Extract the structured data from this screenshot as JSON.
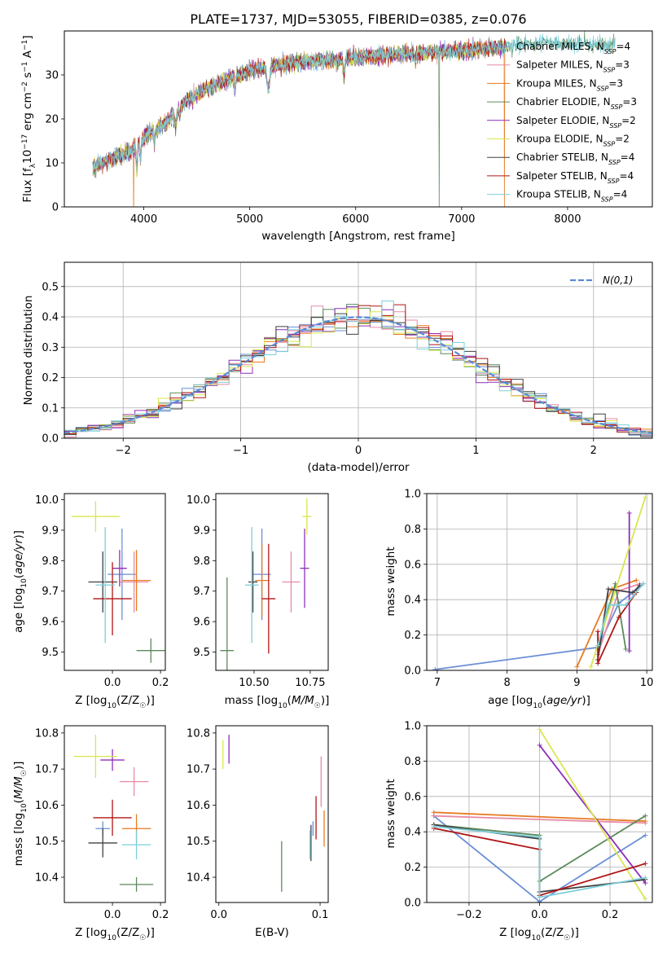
{
  "title": "PLATE=1737, MJD=53055, FIBERID=0385, z=0.076",
  "series": [
    {
      "name": "Chabrier MILES",
      "nssp": "4",
      "color": "#6b8fd6"
    },
    {
      "name": "Salpeter MILES",
      "nssp": "3",
      "color": "#e88aa4"
    },
    {
      "name": "Kroupa MILES",
      "nssp": "3",
      "color": "#e67a22"
    },
    {
      "name": "Chabrier ELODIE",
      "nssp": "3",
      "color": "#5c8a5c"
    },
    {
      "name": "Salpeter ELODIE",
      "nssp": "2",
      "color": "#8e2fb8"
    },
    {
      "name": "Kroupa ELODIE",
      "nssp": "2",
      "color": "#d9e64f"
    },
    {
      "name": "Chabrier STELIB",
      "nssp": "4",
      "color": "#404040"
    },
    {
      "name": "Salpeter STELIB",
      "nssp": "4",
      "color": "#b01515"
    },
    {
      "name": "Kroupa STELIB",
      "nssp": "4",
      "color": "#7ccfd9"
    }
  ],
  "chart_data": [
    {
      "id": "spectrum",
      "type": "line",
      "xlabel": "wavelength [Angstrom, rest frame]",
      "ylabel": "Flux [f_λ10^-17 erg cm^-2 s^-1 A^-1]",
      "xlim": [
        3250,
        8800
      ],
      "ylim": [
        0,
        40
      ],
      "xticks": [
        4000,
        5000,
        6000,
        7000,
        8000
      ],
      "yticks": [
        0,
        10,
        20,
        30
      ],
      "continuum": [
        [
          3520,
          9
        ],
        [
          3700,
          11
        ],
        [
          3900,
          13
        ],
        [
          4000,
          16
        ],
        [
          4200,
          19
        ],
        [
          4400,
          24
        ],
        [
          4600,
          27
        ],
        [
          4800,
          29
        ],
        [
          5000,
          31
        ],
        [
          5200,
          32
        ],
        [
          5500,
          33
        ],
        [
          5800,
          33.5
        ],
        [
          6000,
          34
        ],
        [
          6300,
          34.5
        ],
        [
          6600,
          35
        ],
        [
          7000,
          35.5
        ],
        [
          7400,
          36.5
        ],
        [
          7800,
          37.5
        ],
        [
          8200,
          37
        ],
        [
          8500,
          37
        ]
      ],
      "grid": false,
      "legend": "upper right"
    },
    {
      "id": "residuals",
      "type": "histogram",
      "xlabel": "(data-model)/error",
      "ylabel": "Normed distribution",
      "xlim": [
        -2.5,
        2.5
      ],
      "ylim": [
        0,
        0.58
      ],
      "xticks": [
        -2,
        -1,
        0,
        1,
        2
      ],
      "yticks": [
        0.0,
        0.1,
        0.2,
        0.3,
        0.4,
        0.5
      ],
      "bin_width": 0.1,
      "bin_start": -2.5,
      "reference": {
        "name": "N(0,1)",
        "color": "#5a8ad6"
      },
      "grid": true,
      "legend": "upper right"
    },
    {
      "id": "age_vs_Z",
      "type": "errorbar",
      "xlabel": "Z [log10(Z/Z☉)]",
      "ylabel": "age [log10(age/yr)]",
      "xlim": [
        -0.2,
        0.22
      ],
      "ylim": [
        9.44,
        10.02
      ],
      "xticks": [
        0.0,
        0.2
      ],
      "yticks": [
        9.5,
        9.6,
        9.7,
        9.8,
        9.9,
        10.0
      ],
      "points": [
        {
          "s": 0,
          "x": 0.04,
          "xe": 0.06,
          "y": 9.755,
          "ye": 0.15
        },
        {
          "s": 1,
          "x": 0.09,
          "xe": 0.06,
          "y": 9.73,
          "ye": 0.1
        },
        {
          "s": 2,
          "x": 0.1,
          "xe": 0.06,
          "y": 9.735,
          "ye": 0.1
        },
        {
          "s": 3,
          "x": 0.16,
          "xe": 0.06,
          "y": 9.505,
          "ye": 0.04
        },
        {
          "s": 4,
          "x": 0.03,
          "xe": 0.03,
          "y": 9.775,
          "ye": 0.06
        },
        {
          "s": 5,
          "x": -0.07,
          "xe": 0.1,
          "y": 9.945,
          "ye": 0.05
        },
        {
          "s": 6,
          "x": -0.04,
          "xe": 0.06,
          "y": 9.73,
          "ye": 0.1
        },
        {
          "s": 7,
          "x": 0.0,
          "xe": 0.08,
          "y": 9.675,
          "ye": 0.12
        },
        {
          "s": 8,
          "x": -0.03,
          "xe": 0.04,
          "y": 9.72,
          "ye": 0.19
        }
      ]
    },
    {
      "id": "age_vs_mass",
      "type": "errorbar",
      "xlabel": "mass [log10(M/M☉)]",
      "ylabel": "",
      "xlim": [
        10.33,
        10.83
      ],
      "ylim": [
        9.44,
        10.02
      ],
      "xticks": [
        10.5,
        10.75
      ],
      "yticks": [
        9.5,
        9.6,
        9.7,
        9.8,
        9.9,
        10.0
      ],
      "points": [
        {
          "s": 0,
          "x": 10.535,
          "xe": 0.04,
          "y": 9.755,
          "ye": 0.15
        },
        {
          "s": 1,
          "x": 10.665,
          "xe": 0.04,
          "y": 9.73,
          "ye": 0.1
        },
        {
          "s": 2,
          "x": 10.535,
          "xe": 0.03,
          "y": 9.735,
          "ye": 0.12
        },
        {
          "s": 3,
          "x": 10.38,
          "xe": 0.03,
          "y": 9.505,
          "ye": 0.24
        },
        {
          "s": 4,
          "x": 10.725,
          "xe": 0.02,
          "y": 9.775,
          "ye": 0.13
        },
        {
          "s": 5,
          "x": 10.735,
          "xe": 0.02,
          "y": 9.945,
          "ye": 0.06
        },
        {
          "s": 6,
          "x": 10.495,
          "xe": 0.02,
          "y": 9.73,
          "ye": 0.1
        },
        {
          "s": 7,
          "x": 10.565,
          "xe": 0.03,
          "y": 9.675,
          "ye": 0.18
        },
        {
          "s": 8,
          "x": 10.49,
          "xe": 0.03,
          "y": 9.72,
          "ye": 0.19
        }
      ]
    },
    {
      "id": "weight_vs_age",
      "type": "line",
      "xlabel": "age [log10(age/yr)]",
      "ylabel": "mass weight",
      "xlim": [
        6.85,
        10.08
      ],
      "ylim": [
        0,
        1
      ],
      "xticks": [
        7,
        8,
        9,
        10
      ],
      "yticks": [
        0.0,
        0.2,
        0.4,
        0.6,
        0.8,
        1.0
      ],
      "lines": [
        {
          "s": 0,
          "pts": [
            [
              6.97,
              0.005
            ],
            [
              9.3,
              0.13
            ],
            [
              9.6,
              0.38
            ],
            [
              9.8,
              0.44
            ],
            [
              9.95,
              0.49
            ]
          ]
        },
        {
          "s": 1,
          "pts": [
            [
              9.3,
              0.09
            ],
            [
              9.6,
              0.45
            ],
            [
              9.9,
              0.49
            ]
          ]
        },
        {
          "s": 2,
          "pts": [
            [
              9.0,
              0.02
            ],
            [
              9.5,
              0.46
            ],
            [
              9.85,
              0.51
            ]
          ]
        },
        {
          "s": 3,
          "pts": [
            [
              9.3,
              0.12
            ],
            [
              9.55,
              0.49
            ],
            [
              9.7,
              0.12
            ]
          ]
        },
        {
          "s": 4,
          "pts": [
            [
              9.75,
              0.11
            ],
            [
              9.75,
              0.89
            ]
          ]
        },
        {
          "s": 5,
          "pts": [
            [
              9.2,
              0.02
            ],
            [
              9.98,
              0.98
            ]
          ]
        },
        {
          "s": 6,
          "pts": [
            [
              9.3,
              0.06
            ],
            [
              9.45,
              0.46
            ],
            [
              9.8,
              0.44
            ],
            [
              9.9,
              0.48
            ]
          ]
        },
        {
          "s": 7,
          "pts": [
            [
              9.3,
              0.22
            ],
            [
              9.3,
              0.04
            ],
            [
              9.6,
              0.3
            ],
            [
              9.85,
              0.44
            ]
          ]
        },
        {
          "s": 8,
          "pts": [
            [
              9.3,
              0.14
            ],
            [
              9.45,
              0.37
            ],
            [
              9.7,
              0.37
            ],
            [
              9.95,
              0.49
            ]
          ]
        }
      ],
      "grid": true
    },
    {
      "id": "mass_vs_Z",
      "type": "errorbar",
      "xlabel": "Z [log10(Z/Z☉)]",
      "ylabel": "mass [log10(M/M☉)]",
      "xlim": [
        -0.2,
        0.22
      ],
      "ylim": [
        10.33,
        10.82
      ],
      "xticks": [
        0.0,
        0.2
      ],
      "yticks": [
        10.4,
        10.5,
        10.6,
        10.7,
        10.8
      ],
      "points": [
        {
          "s": 0,
          "x": -0.04,
          "xe": 0.03,
          "y": 10.535,
          "ye": 0.02
        },
        {
          "s": 1,
          "x": 0.09,
          "xe": 0.06,
          "y": 10.665,
          "ye": 0.04
        },
        {
          "s": 2,
          "x": 0.1,
          "xe": 0.06,
          "y": 10.535,
          "ye": 0.04
        },
        {
          "s": 3,
          "x": 0.1,
          "xe": 0.07,
          "y": 10.38,
          "ye": 0.02
        },
        {
          "s": 4,
          "x": 0.0,
          "xe": 0.05,
          "y": 10.725,
          "ye": 0.03
        },
        {
          "s": 5,
          "x": -0.07,
          "xe": 0.09,
          "y": 10.735,
          "ye": 0.06
        },
        {
          "s": 6,
          "x": -0.04,
          "xe": 0.06,
          "y": 10.495,
          "ye": 0.04
        },
        {
          "s": 7,
          "x": 0.0,
          "xe": 0.08,
          "y": 10.565,
          "ye": 0.05
        },
        {
          "s": 8,
          "x": 0.1,
          "xe": 0.06,
          "y": 10.49,
          "ye": 0.04
        }
      ]
    },
    {
      "id": "mass_vs_ebv",
      "type": "errorbar",
      "xlabel": "E(B-V)",
      "ylabel": "",
      "xlim": [
        -0.003,
        0.108
      ],
      "ylim": [
        10.33,
        10.82
      ],
      "xticks": [
        0.0,
        0.1
      ],
      "yticks": [
        10.4,
        10.5,
        10.6,
        10.7,
        10.8
      ],
      "points": [
        {
          "s": 0,
          "x": 0.093,
          "xe": 0.0,
          "y": 10.535,
          "ye": 0.02
        },
        {
          "s": 1,
          "x": 0.101,
          "xe": 0.0,
          "y": 10.665,
          "ye": 0.07
        },
        {
          "s": 2,
          "x": 0.104,
          "xe": 0.0,
          "y": 10.535,
          "ye": 0.05
        },
        {
          "s": 3,
          "x": 0.062,
          "xe": 0.0,
          "y": 10.43,
          "ye": 0.07
        },
        {
          "s": 4,
          "x": 0.01,
          "xe": 0.0,
          "y": 10.755,
          "ye": 0.04
        },
        {
          "s": 5,
          "x": 0.004,
          "xe": 0.0,
          "y": 10.74,
          "ye": 0.04
        },
        {
          "s": 6,
          "x": 0.091,
          "xe": 0.0,
          "y": 10.495,
          "ye": 0.05
        },
        {
          "s": 7,
          "x": 0.096,
          "xe": 0.0,
          "y": 10.565,
          "ye": 0.06
        },
        {
          "s": 8,
          "x": 0.09,
          "xe": 0.0,
          "y": 10.49,
          "ye": 0.04
        }
      ]
    },
    {
      "id": "weight_vs_Z",
      "type": "line",
      "xlabel": "Z [log10(Z/Z☉)]",
      "ylabel": "mass weight",
      "xlim": [
        -0.32,
        0.32
      ],
      "ylim": [
        0,
        1
      ],
      "xticks": [
        -0.2,
        0.0,
        0.2
      ],
      "yticks": [
        0.0,
        0.2,
        0.4,
        0.6,
        0.8,
        1.0
      ],
      "lines": [
        {
          "s": 0,
          "pts": [
            [
              -0.3,
              0.49
            ],
            [
              0.0,
              0.005
            ],
            [
              0.3,
              0.38
            ]
          ]
        },
        {
          "s": 1,
          "pts": [
            [
              -0.3,
              0.49
            ],
            [
              0.3,
              0.45
            ]
          ]
        },
        {
          "s": 2,
          "pts": [
            [
              -0.3,
              0.51
            ],
            [
              0.3,
              0.46
            ]
          ]
        },
        {
          "s": 3,
          "pts": [
            [
              -0.3,
              0.44
            ],
            [
              0.0,
              0.38
            ],
            [
              0.0,
              0.12
            ],
            [
              0.3,
              0.49
            ]
          ]
        },
        {
          "s": 4,
          "pts": [
            [
              0.0,
              0.89
            ],
            [
              0.3,
              0.11
            ]
          ]
        },
        {
          "s": 5,
          "pts": [
            [
              0.0,
              0.98
            ],
            [
              0.3,
              0.02
            ]
          ]
        },
        {
          "s": 6,
          "pts": [
            [
              -0.3,
              0.44
            ],
            [
              0.0,
              0.36
            ],
            [
              0.0,
              0.06
            ],
            [
              0.3,
              0.13
            ]
          ]
        },
        {
          "s": 7,
          "pts": [
            [
              -0.3,
              0.42
            ],
            [
              0.0,
              0.3
            ],
            [
              0.0,
              0.04
            ],
            [
              0.3,
              0.22
            ]
          ]
        },
        {
          "s": 8,
          "pts": [
            [
              -0.3,
              0.43
            ],
            [
              0.0,
              0.37
            ],
            [
              0.0,
              0.03
            ],
            [
              0.3,
              0.14
            ]
          ]
        }
      ],
      "grid": true
    }
  ]
}
